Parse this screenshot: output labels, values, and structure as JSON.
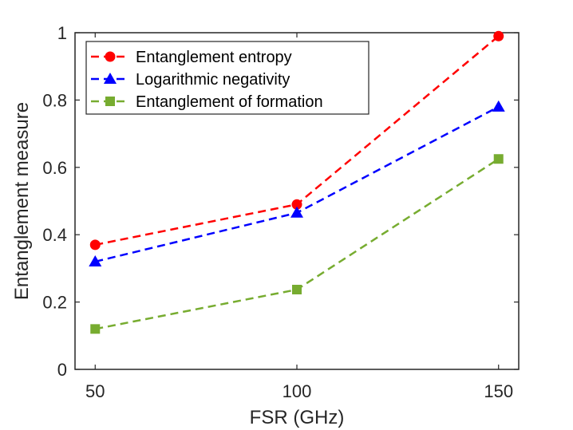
{
  "chart_data": {
    "type": "line",
    "title": "",
    "xlabel": "FSR (GHz)",
    "ylabel": "Entanglement measure",
    "x": [
      50,
      100,
      150
    ],
    "xlim": [
      45,
      155
    ],
    "ylim": [
      0,
      1
    ],
    "xticks": [
      50,
      100,
      150
    ],
    "xtick_labels": [
      "50",
      "100",
      "150"
    ],
    "yticks": [
      0,
      0.2,
      0.4,
      0.6,
      0.8,
      1
    ],
    "ytick_labels": [
      "0",
      "0.2",
      "0.4",
      "0.6",
      "0.8",
      "1"
    ],
    "grid": false,
    "legend_position": "top-left",
    "series": [
      {
        "name": "Entanglement entropy",
        "color": "#ff0000",
        "marker": "circle",
        "line_style": "dashed",
        "values": [
          0.37,
          0.49,
          0.99
        ]
      },
      {
        "name": "Logarithmic negativity",
        "color": "#0000ff",
        "marker": "triangle",
        "line_style": "dashed",
        "values": [
          0.32,
          0.465,
          0.78
        ]
      },
      {
        "name": "Entanglement of formation",
        "color": "#77ac30",
        "marker": "square",
        "line_style": "dashed",
        "values": [
          0.12,
          0.237,
          0.625
        ]
      }
    ]
  }
}
